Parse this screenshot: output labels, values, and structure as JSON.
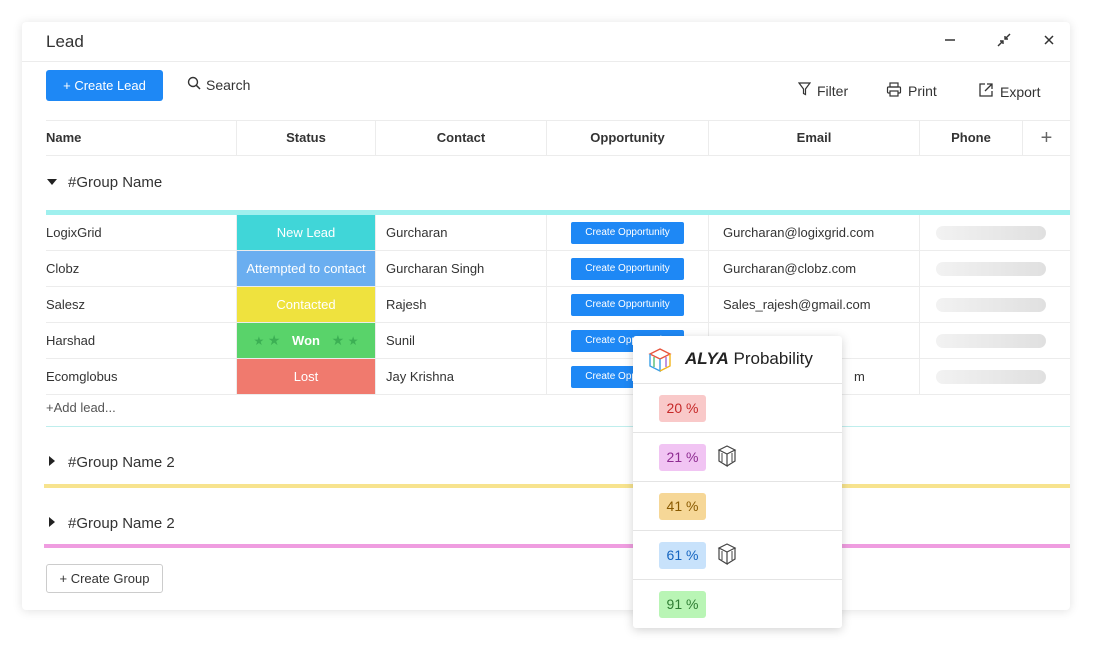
{
  "window": {
    "title": "Lead"
  },
  "toolbar": {
    "create_lead": "+ Create Lead",
    "search": "Search",
    "filter": "Filter",
    "print": "Print",
    "export": "Export"
  },
  "table": {
    "columns": [
      "Name",
      "Status",
      "Contact",
      "Opportunity",
      "Email",
      "Phone"
    ],
    "add_column": "+"
  },
  "groups": [
    {
      "name": "#Group Name",
      "expanded": true,
      "color": "#9ff0ee"
    },
    {
      "name": "#Group Name 2",
      "expanded": false,
      "color": "#f7e38e"
    },
    {
      "name": "#Group Name 2",
      "expanded": false,
      "color": "#ef9de0"
    }
  ],
  "rows": [
    {
      "name": "LogixGrid",
      "status": "New Lead",
      "status_color": "#40d6d8",
      "contact": "Gurcharan",
      "opportunity": "Create Opportunity",
      "email": "Gurcharan@logixgrid.com"
    },
    {
      "name": "Clobz",
      "status": "Attempted to contact",
      "status_color": "#6aaef0",
      "contact": "Gurcharan Singh",
      "opportunity": "Create Opportunity",
      "email": "Gurcharan@clobz.com"
    },
    {
      "name": "Salesz",
      "status": "Contacted",
      "status_color": "#efe23e",
      "contact": "Rajesh",
      "opportunity": "Create Opportunity",
      "email": "Sales_rajesh@gmail.com"
    },
    {
      "name": "Harshad",
      "status": "Won",
      "status_color": "#59d36a",
      "contact": "Sunil",
      "opportunity": "Create Opportunity",
      "email": ""
    },
    {
      "name": "Ecomglobus",
      "status": "Lost",
      "status_color": "#f07a6e",
      "contact": "Jay Krishna",
      "opportunity": "Create Opportunity",
      "email": "m"
    }
  ],
  "add_lead": "+Add lead...",
  "create_group": "+ Create Group",
  "popup": {
    "brand": "ALYA",
    "title": "Probability",
    "items": [
      {
        "value": "20 %",
        "bg": "#f9c9c9",
        "fg": "#c62828",
        "ai": false
      },
      {
        "value": "21 %",
        "bg": "#f1c4f3",
        "fg": "#8e2b91",
        "ai": true
      },
      {
        "value": "41 %",
        "bg": "#f6d797",
        "fg": "#8a5a00",
        "ai": false
      },
      {
        "value": "61 %",
        "bg": "#c8e2fb",
        "fg": "#1565c0",
        "ai": true
      },
      {
        "value": "91 %",
        "bg": "#b9f5b5",
        "fg": "#2e7d32",
        "ai": false
      }
    ]
  },
  "icons": {
    "minimize": "minimize-icon",
    "collapse": "collapse-arrows-icon",
    "close": "close-icon",
    "search": "search-icon",
    "filter": "filter-icon",
    "print": "printer-icon",
    "export": "export-icon",
    "ai": "cube-icon",
    "caret_down": "caret-down-icon",
    "caret_right": "caret-right-icon"
  }
}
